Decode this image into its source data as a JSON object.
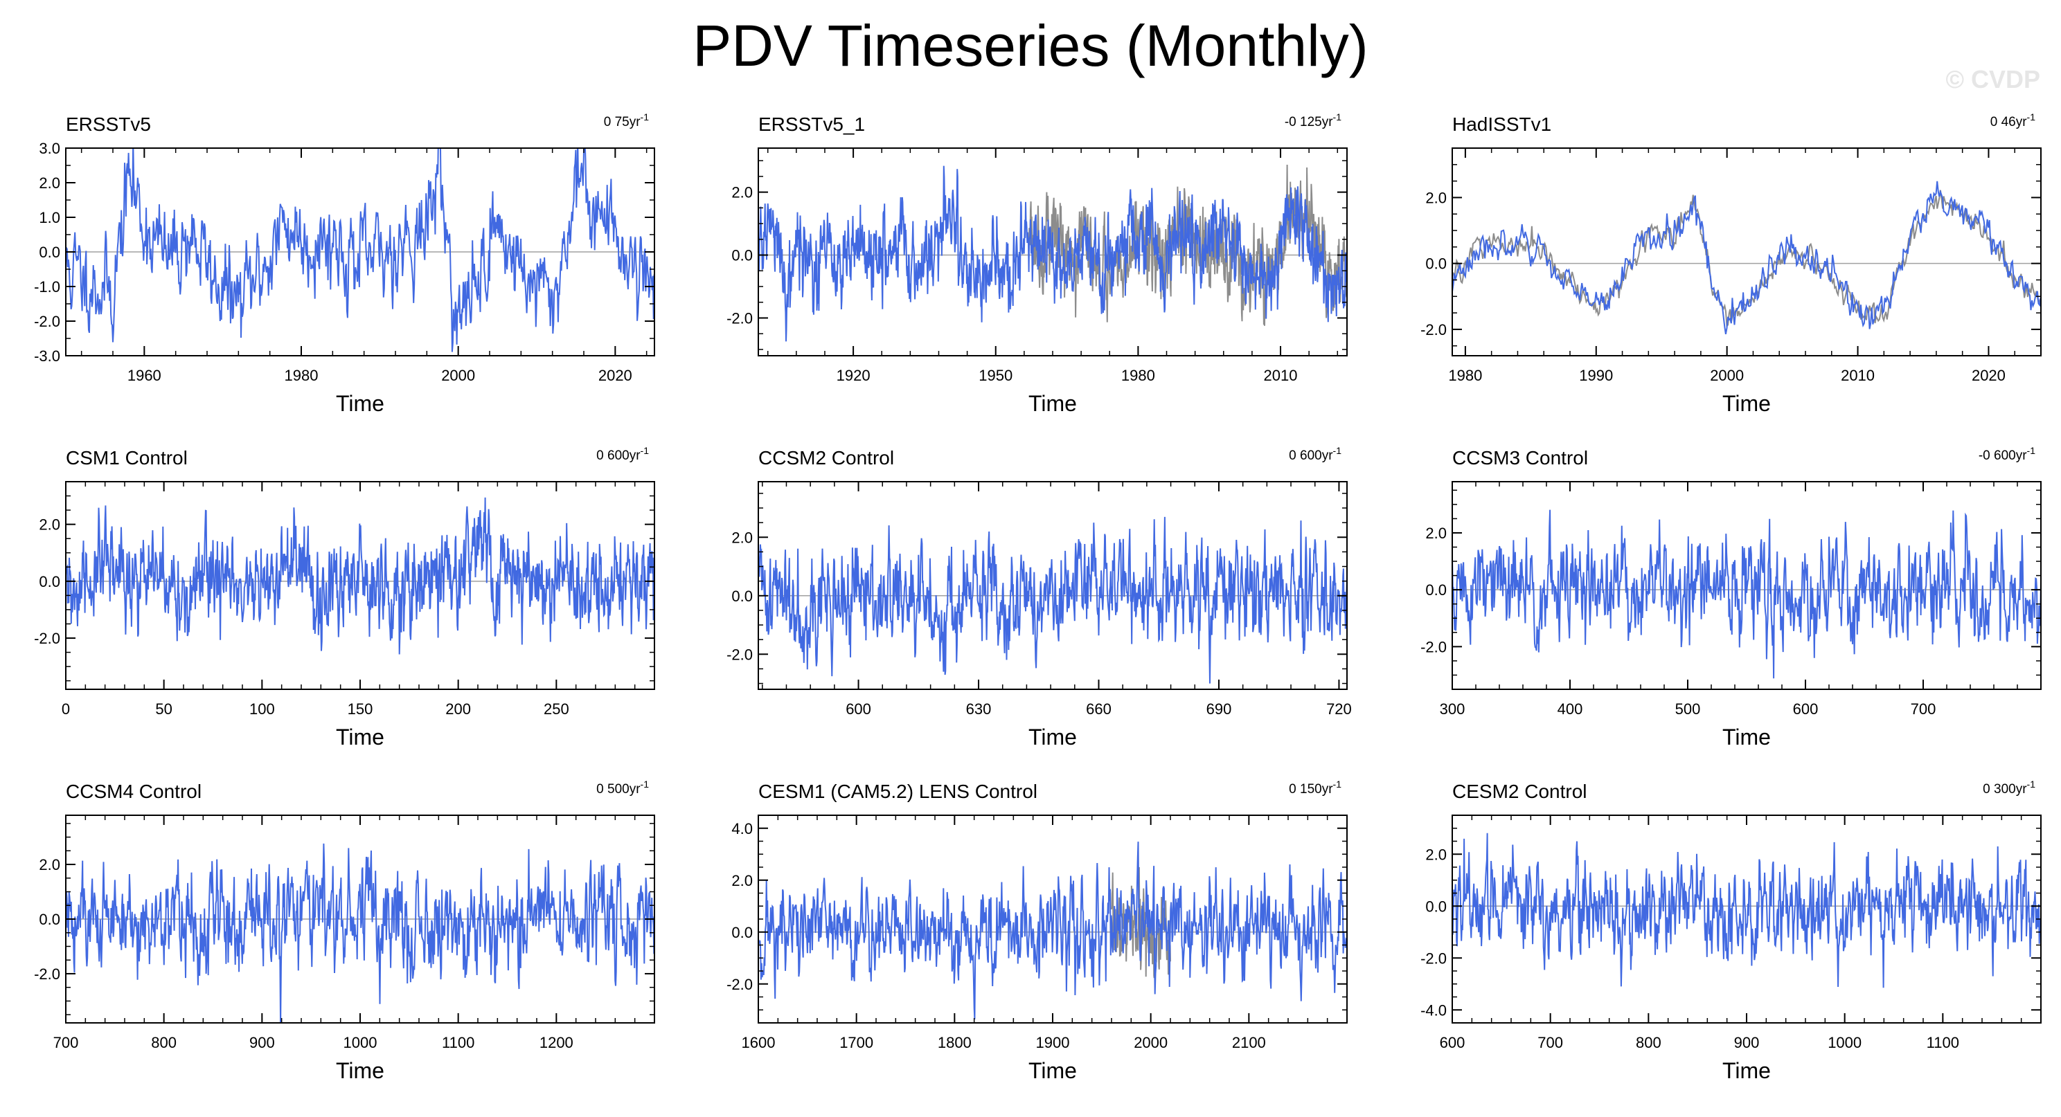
{
  "figure": {
    "title": "PDV Timeseries (Monthly)",
    "watermark": "© CVDP",
    "colors": {
      "primary": "#4169e1",
      "secondary": "#8c8c8c",
      "zero_line": "#a0a0a0",
      "frame": "#000000"
    }
  },
  "chart_data": [
    {
      "type": "line",
      "title": "ERSSTv5",
      "trend": "0 75yr",
      "trend_unit": "-1",
      "xlabel": "Time",
      "ylabel": "",
      "xlim": [
        1950,
        2025
      ],
      "ylim": [
        -3.0,
        3.0
      ],
      "xticks": [
        1960,
        1980,
        2000,
        2020
      ],
      "xtick_labels": [
        "1960",
        "1980",
        "2000",
        "2020"
      ],
      "yticks": [
        -3,
        -2,
        -1,
        0,
        1,
        2,
        3
      ],
      "ytick_labels": [
        "-3.0",
        "-2.0",
        "-1.0",
        "0.0",
        "1.0",
        "2.0",
        "3.0"
      ],
      "series": [
        {
          "name": "ERSSTv5",
          "color": "#4169e1",
          "amplitude": 1.0,
          "step_years": 0.0833,
          "seed": 11,
          "x": [
            1950,
            1953,
            1956,
            1958,
            1960,
            1963,
            1966,
            1969,
            1972,
            1975,
            1978,
            1981,
            1984,
            1987,
            1990,
            1993,
            1996,
            1997.5,
            1999,
            2000,
            2002,
            2005,
            2008,
            2010,
            2012,
            2014,
            2015,
            2017,
            2020,
            2023,
            2025
          ],
          "values": [
            -0.5,
            -0.8,
            -1.2,
            2.2,
            0.8,
            -0.2,
            0.5,
            -0.8,
            -1.5,
            -0.5,
            0.8,
            0.3,
            0.4,
            -0.3,
            -0.2,
            0.4,
            0.6,
            2.7,
            -0.5,
            -2.2,
            -1.0,
            0.8,
            -0.5,
            -1.0,
            -1.4,
            0.5,
            2.3,
            1.5,
            0.5,
            -0.5,
            -0.8
          ]
        }
      ]
    },
    {
      "type": "line",
      "title": "ERSSTv5_1",
      "trend": "-0 125yr",
      "trend_unit": "-1",
      "xlabel": "Time",
      "ylabel": "",
      "xlim": [
        1900,
        2024
      ],
      "ylim": [
        -3.2,
        3.4
      ],
      "xticks": [
        1920,
        1950,
        1980,
        2010
      ],
      "xtick_labels": [
        "1920",
        "1950",
        "1980",
        "2010"
      ],
      "yticks": [
        -2,
        0,
        2
      ],
      "ytick_labels": [
        "-2.0",
        "0.0",
        "2.0"
      ],
      "series": [
        {
          "name": "ERSSTv5_1 (gray)",
          "color": "#8c8c8c",
          "amplitude": 1.1,
          "step_years": 0.0833,
          "seed": 5,
          "x": [
            1957,
            1960,
            1965,
            1970,
            1975,
            1980,
            1985,
            1990,
            1995,
            2000,
            2005,
            2010,
            2012,
            2015,
            2018,
            2020,
            2024
          ],
          "values": [
            0.3,
            0.8,
            0.5,
            0.2,
            -0.4,
            0.3,
            0.3,
            0.5,
            0.2,
            0.1,
            -0.5,
            -0.4,
            1.8,
            1.2,
            0.2,
            -0.8,
            -1.2
          ]
        },
        {
          "name": "ERSSTv5_1",
          "color": "#4169e1",
          "amplitude": 1.0,
          "step_years": 0.0833,
          "seed": 21,
          "x": [
            1900,
            1903,
            1906,
            1909,
            1912,
            1915,
            1918,
            1922,
            1926,
            1930,
            1934,
            1938,
            1941,
            1944,
            1947,
            1950,
            1953,
            1957,
            1960,
            1964,
            1968,
            1972,
            1976,
            1980,
            1984,
            1988,
            1992,
            1996,
            2000,
            2004,
            2008,
            2012,
            2015,
            2018,
            2021,
            2024
          ],
          "values": [
            0.2,
            1.0,
            -0.8,
            0.3,
            -0.4,
            0.0,
            -0.5,
            0.6,
            -0.3,
            0.5,
            -0.3,
            0.6,
            1.5,
            -0.5,
            -0.6,
            -0.3,
            -1.0,
            0.5,
            0.3,
            -0.3,
            0.3,
            -0.3,
            0.1,
            0.8,
            -0.2,
            0.5,
            0.3,
            0.8,
            0.5,
            -0.3,
            -0.8,
            1.4,
            1.0,
            0.0,
            -0.8,
            -1.0
          ]
        }
      ]
    },
    {
      "type": "line",
      "title": "HadISSTv1",
      "trend": "0 46yr",
      "trend_unit": "-1",
      "xlabel": "Time",
      "ylabel": "",
      "xlim": [
        1979,
        2024
      ],
      "ylim": [
        -2.8,
        3.5
      ],
      "xticks": [
        1980,
        1990,
        2000,
        2010,
        2020
      ],
      "xtick_labels": [
        "1980",
        "1990",
        "2000",
        "2010",
        "2020"
      ],
      "yticks": [
        -2,
        0,
        2
      ],
      "ytick_labels": [
        "-2.0",
        "0.0",
        "2.0"
      ],
      "series": [
        {
          "name": "HadISSTv1 (gray)",
          "color": "#8c8c8c",
          "amplitude": 0.3,
          "step_years": 0.0833,
          "seed": 9,
          "x": [
            1979,
            1981,
            1983,
            1986,
            1988,
            1990,
            1992,
            1994,
            1996,
            1997.5,
            1999,
            2000,
            2002,
            2005,
            2008,
            2010,
            2012,
            2014,
            2016,
            2018,
            2020,
            2022,
            2024
          ],
          "values": [
            -0.5,
            0.6,
            0.5,
            0.3,
            -0.6,
            -1.4,
            -0.5,
            1.0,
            0.8,
            2.0,
            -0.8,
            -1.8,
            -1.0,
            0.5,
            -0.3,
            -1.5,
            -1.5,
            0.8,
            2.0,
            1.5,
            0.8,
            -0.5,
            -1.0
          ]
        },
        {
          "name": "HadISSTv1",
          "color": "#4169e1",
          "amplitude": 0.4,
          "step_years": 0.0833,
          "seed": 3,
          "x": [
            1979,
            1981,
            1983,
            1986,
            1988,
            1990,
            1992,
            1994,
            1996,
            1997.5,
            1999,
            2000,
            2002,
            2005,
            2008,
            2010,
            2012,
            2014,
            2016,
            2018,
            2020,
            2022,
            2024
          ],
          "values": [
            -0.5,
            0.6,
            0.5,
            0.3,
            -0.6,
            -1.4,
            -0.5,
            1.0,
            0.8,
            2.0,
            -0.8,
            -1.8,
            -1.0,
            0.5,
            -0.3,
            -1.5,
            -1.5,
            0.8,
            2.1,
            1.5,
            0.8,
            -0.5,
            -1.0
          ]
        }
      ]
    },
    {
      "type": "line",
      "title": "CSM1 Control",
      "trend": "0 600yr",
      "trend_unit": "-1",
      "xlabel": "Time",
      "ylabel": "",
      "xlim": [
        0,
        300
      ],
      "ylim": [
        -3.8,
        3.5
      ],
      "xticks": [
        0,
        50,
        100,
        150,
        200,
        250
      ],
      "xtick_labels": [
        "0",
        "50",
        "100",
        "150",
        "200",
        "250"
      ],
      "yticks": [
        -2,
        0,
        2
      ],
      "ytick_labels": [
        "-2.0",
        "0.0",
        "2.0"
      ],
      "series": [
        {
          "name": "CSM1 Control",
          "color": "#4169e1",
          "amplitude": 1.3,
          "step_years": 0.25,
          "seed": 31,
          "x": [
            0,
            20,
            40,
            60,
            80,
            90,
            100,
            120,
            135,
            150,
            170,
            190,
            200,
            205,
            220,
            240,
            260,
            280,
            300
          ],
          "values": [
            -0.8,
            0.5,
            0.2,
            -0.6,
            0.5,
            -1.2,
            0.3,
            0.2,
            -0.8,
            0.6,
            -0.3,
            0.6,
            -0.5,
            1.2,
            0.6,
            0.0,
            0.4,
            -0.2,
            0.2
          ]
        }
      ]
    },
    {
      "type": "line",
      "title": "CCSM2 Control",
      "trend": "0 600yr",
      "trend_unit": "-1",
      "xlabel": "Time",
      "ylabel": "",
      "xlim": [
        575,
        722
      ],
      "ylim": [
        -3.2,
        3.9
      ],
      "xticks": [
        600,
        630,
        660,
        690,
        720
      ],
      "xtick_labels": [
        "600",
        "630",
        "660",
        "690",
        "720"
      ],
      "yticks": [
        -2,
        0,
        2
      ],
      "ytick_labels": [
        "-2.0",
        "0.0",
        "2.0"
      ],
      "series": [
        {
          "name": "CCSM2 Control",
          "color": "#4169e1",
          "amplitude": 1.4,
          "step_years": 0.125,
          "seed": 41,
          "x": [
            575,
            590,
            605,
            620,
            635,
            650,
            660,
            670,
            685,
            700,
            715,
            722
          ],
          "values": [
            0.3,
            -0.3,
            0.0,
            -0.5,
            0.2,
            -0.4,
            0.8,
            0.2,
            -0.2,
            0.3,
            0.0,
            -0.5
          ]
        }
      ]
    },
    {
      "type": "line",
      "title": "CCSM3 Control",
      "trend": "-0 600yr",
      "trend_unit": "-1",
      "xlabel": "Time",
      "ylabel": "",
      "xlim": [
        300,
        800
      ],
      "ylim": [
        -3.5,
        3.8
      ],
      "xticks": [
        300,
        400,
        500,
        600,
        700
      ],
      "xtick_labels": [
        "300",
        "400",
        "500",
        "600",
        "700"
      ],
      "yticks": [
        -2,
        0,
        2
      ],
      "ytick_labels": [
        "-2.0",
        "0.0",
        "2.0"
      ],
      "series": [
        {
          "name": "CCSM3 Control",
          "color": "#4169e1",
          "amplitude": 1.45,
          "step_years": 0.5,
          "seed": 51,
          "x": [
            300,
            400,
            500,
            600,
            700,
            800
          ],
          "values": [
            0.0,
            0.0,
            0.1,
            -0.1,
            0.0,
            0.0
          ]
        }
      ]
    },
    {
      "type": "line",
      "title": "CCSM4 Control",
      "trend": "0 500yr",
      "trend_unit": "-1",
      "xlabel": "Time",
      "ylabel": "",
      "xlim": [
        700,
        1300
      ],
      "ylim": [
        -3.8,
        3.8
      ],
      "xticks": [
        700,
        800,
        900,
        1000,
        1100,
        1200
      ],
      "xtick_labels": [
        "700",
        "800",
        "900",
        "1000",
        "1100",
        "1200"
      ],
      "yticks": [
        -2,
        0,
        2
      ],
      "ytick_labels": [
        "-2.0",
        "0.0",
        "2.0"
      ],
      "series": [
        {
          "name": "CCSM4 Control",
          "color": "#4169e1",
          "amplitude": 1.45,
          "step_years": 0.55,
          "seed": 61,
          "x": [
            700,
            800,
            900,
            1000,
            1100,
            1200,
            1300
          ],
          "values": [
            0.0,
            0.0,
            0.1,
            0.0,
            -0.1,
            0.0,
            0.0
          ]
        }
      ]
    },
    {
      "type": "line",
      "title": "CESM1 (CAM5.2) LENS Control",
      "trend": "0 150yr",
      "trend_unit": "-1",
      "xlabel": "Time",
      "ylabel": "",
      "xlim": [
        1600,
        2200
      ],
      "ylim": [
        -3.5,
        4.5
      ],
      "xticks": [
        1600,
        1700,
        1800,
        1900,
        2000,
        2100
      ],
      "xtick_labels": [
        "1600",
        "1700",
        "1800",
        "1900",
        "2000",
        "2100"
      ],
      "yticks": [
        -2,
        0,
        2,
        4
      ],
      "ytick_labels": [
        "-2.0",
        "0.0",
        "2.0",
        "4.0"
      ],
      "series": [
        {
          "name": "CESM1 LENS Control (gray)",
          "color": "#8c8c8c",
          "amplitude": 1.1,
          "step_years": 0.3,
          "seed": 7,
          "x": [
            1960,
            1980,
            2000,
            2020
          ],
          "values": [
            0.0,
            0.1,
            -0.1,
            0.0
          ]
        },
        {
          "name": "CESM1 LENS Control",
          "color": "#4169e1",
          "amplitude": 1.45,
          "step_years": 0.55,
          "seed": 71,
          "x": [
            1600,
            1700,
            1800,
            1900,
            2000,
            2100,
            2200
          ],
          "values": [
            0.0,
            0.1,
            0.0,
            0.0,
            0.1,
            0.0,
            0.0
          ]
        }
      ]
    },
    {
      "type": "line",
      "title": "CESM2 Control",
      "trend": "0 300yr",
      "trend_unit": "-1",
      "xlabel": "Time",
      "ylabel": "",
      "xlim": [
        600,
        1200
      ],
      "ylim": [
        -4.5,
        3.5
      ],
      "xticks": [
        600,
        700,
        800,
        900,
        1000,
        1100
      ],
      "xtick_labels": [
        "600",
        "700",
        "800",
        "900",
        "1000",
        "1100"
      ],
      "yticks": [
        -4,
        -2,
        0,
        2
      ],
      "ytick_labels": [
        "-4.0",
        "-2.0",
        "0.0",
        "2.0"
      ],
      "series": [
        {
          "name": "CESM2 Control",
          "color": "#4169e1",
          "amplitude": 1.4,
          "step_years": 0.55,
          "seed": 81,
          "x": [
            600,
            700,
            800,
            900,
            1000,
            1100,
            1200
          ],
          "values": [
            0.0,
            0.1,
            0.0,
            0.0,
            -0.1,
            0.0,
            0.0
          ]
        }
      ]
    }
  ]
}
